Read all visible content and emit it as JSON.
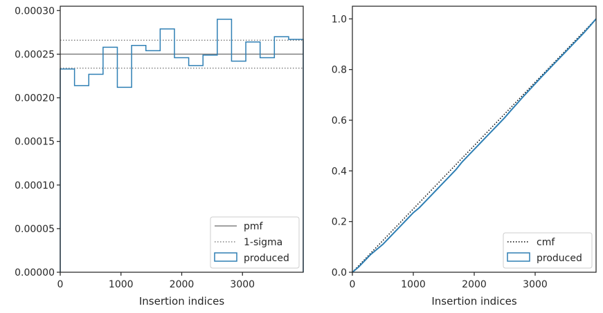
{
  "chart_data": [
    {
      "type": "histogram",
      "xlabel": "Insertion indices",
      "ylabel": "",
      "xlim": [
        0,
        4000
      ],
      "ylim": [
        0,
        0.000305
      ],
      "xticks": [
        0,
        1000,
        2000,
        3000
      ],
      "xtick_labels": [
        "0",
        "1000",
        "2000",
        "3000"
      ],
      "yticks": [
        0,
        5e-05,
        0.0001,
        0.00015,
        0.0002,
        0.00025,
        0.0003
      ],
      "ytick_labels": [
        "0.00000",
        "0.00005",
        "0.00010",
        "0.00015",
        "0.00020",
        "0.00025",
        "0.00030"
      ],
      "legend_position": "lower-right",
      "bin_edges": [
        0,
        235,
        470,
        705,
        940,
        1175,
        1410,
        1645,
        1880,
        2115,
        2350,
        2585,
        2820,
        3055,
        3290,
        3525,
        3760,
        4000
      ],
      "series": [
        {
          "name": "pmf",
          "kind": "hline",
          "value": 0.00025,
          "style": "solid",
          "color": "#808080"
        },
        {
          "name": "1-sigma",
          "kind": "hlines",
          "values": [
            0.000266,
            0.000234
          ],
          "style": "dotted",
          "color": "#808080"
        },
        {
          "name": "produced",
          "kind": "step",
          "color": "#2e7fb4",
          "values": [
            0.000233,
            0.000214,
            0.000227,
            0.000258,
            0.000212,
            0.00026,
            0.000254,
            0.000279,
            0.000246,
            0.000237,
            0.000249,
            0.00029,
            0.000242,
            0.000264,
            0.000246,
            0.00027,
            0.000267
          ]
        }
      ]
    },
    {
      "type": "line",
      "xlabel": "Insertion indices",
      "ylabel": "",
      "xlim": [
        0,
        4000
      ],
      "ylim": [
        0,
        1.05
      ],
      "xticks": [
        0,
        1000,
        2000,
        3000
      ],
      "xtick_labels": [
        "0",
        "1000",
        "2000",
        "3000"
      ],
      "yticks": [
        0,
        0.2,
        0.4,
        0.6,
        0.8,
        1.0
      ],
      "ytick_labels": [
        "0.0",
        "0.2",
        "0.4",
        "0.6",
        "0.8",
        "1.0"
      ],
      "legend_position": "lower-right",
      "series": [
        {
          "name": "cmf",
          "style": "dotted",
          "color": "#000000",
          "x": [
            0,
            4000
          ],
          "y": [
            0,
            1.0
          ]
        },
        {
          "name": "produced",
          "style": "solid",
          "color": "#2e7fb4",
          "x": [
            0,
            100,
            200,
            300,
            400,
            500,
            600,
            700,
            800,
            900,
            1000,
            1100,
            1200,
            1300,
            1400,
            1500,
            1600,
            1700,
            1800,
            1900,
            2000,
            2100,
            2200,
            2300,
            2400,
            2500,
            2600,
            2700,
            2800,
            2900,
            3000,
            3100,
            3200,
            3300,
            3400,
            3500,
            3600,
            3700,
            3800,
            3900,
            4000
          ],
          "y": [
            0,
            0.02,
            0.045,
            0.07,
            0.09,
            0.11,
            0.135,
            0.16,
            0.185,
            0.21,
            0.235,
            0.255,
            0.28,
            0.305,
            0.33,
            0.355,
            0.38,
            0.405,
            0.435,
            0.46,
            0.485,
            0.51,
            0.535,
            0.56,
            0.585,
            0.61,
            0.638,
            0.665,
            0.692,
            0.718,
            0.744,
            0.77,
            0.795,
            0.82,
            0.845,
            0.87,
            0.895,
            0.92,
            0.945,
            0.972,
            1.0
          ]
        }
      ]
    }
  ]
}
